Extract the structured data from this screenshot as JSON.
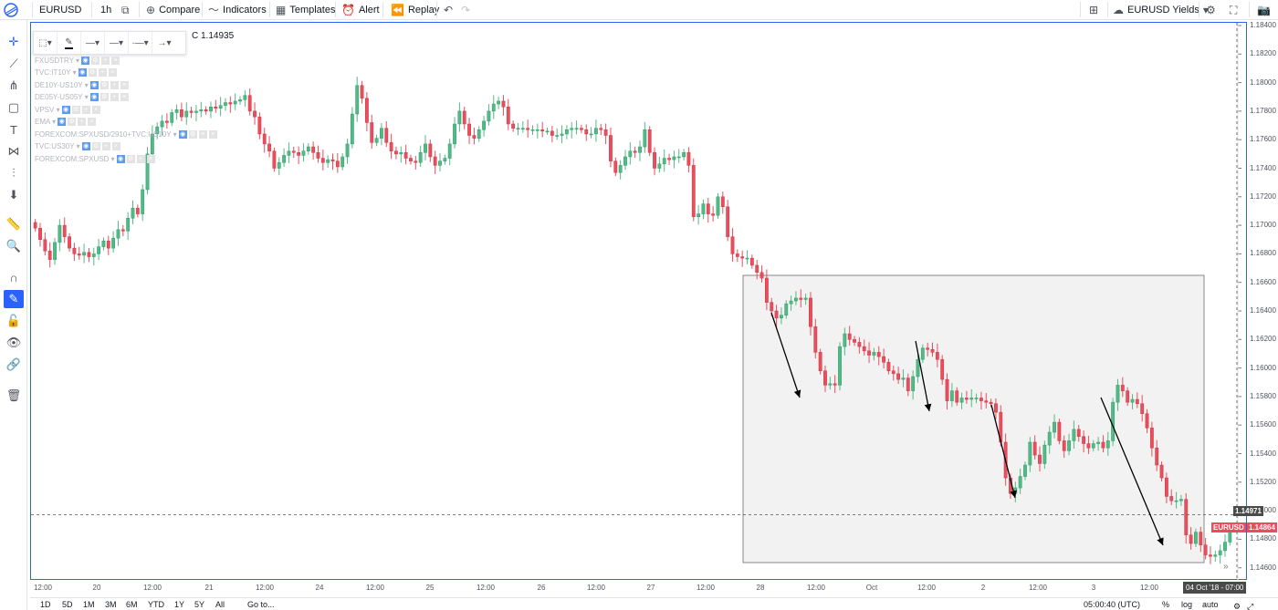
{
  "toolbar": {
    "symbol": "EURUSD",
    "interval": "1h",
    "compare": "Compare",
    "indicators": "Indicators",
    "templates": "Templates",
    "alert": "Alert",
    "replay": "Replay",
    "layout_name": "EURUSD Yields"
  },
  "legend": {
    "close_label": "C 1.14935",
    "studies": [
      "FXUSDTRY",
      "TVC:IT10Y",
      "DE10Y-US10Y",
      "DE05Y-US05Y",
      "VPSV",
      "EMA",
      "FOREXCOM:SPXUSD/2910+TVC:US10Y",
      "TVC:US30Y",
      "FOREXCOM:SPXUSD"
    ]
  },
  "price_axis": {
    "ticks": [
      "1.18400",
      "1.18200",
      "1.18000",
      "1.17800",
      "1.17600",
      "1.17400",
      "1.17200",
      "1.17000",
      "1.16800",
      "1.16600",
      "1.16400",
      "1.16200",
      "1.16000",
      "1.15800",
      "1.15600",
      "1.15400",
      "1.15200",
      "1.15000",
      "1.14800",
      "1.14600"
    ],
    "crosshair_price": "1.14971",
    "last_price": "1.14864",
    "symbol_tag": "EURUSD"
  },
  "time_axis": {
    "ticks": [
      "12:00",
      "20",
      "12:00",
      "21",
      "12:00",
      "24",
      "12:00",
      "25",
      "12:00",
      "26",
      "12:00",
      "27",
      "12:00",
      "28",
      "12:00",
      "Oct",
      "12:00",
      "2",
      "12:00",
      "3",
      "12:00"
    ],
    "crosshair_time": "04 Oct '18 - 07:00"
  },
  "bottom": {
    "ranges": [
      "1D",
      "5D",
      "1M",
      "3M",
      "6M",
      "YTD",
      "1Y",
      "5Y",
      "All"
    ],
    "goto": "Go to...",
    "clock": "05:00:40 (UTC)",
    "percent": "%",
    "log": "log",
    "auto": "auto"
  },
  "colors": {
    "up": "#53b987",
    "down": "#eb4d5c",
    "accent": "#2962ff",
    "box_fill": "#f2f2f2"
  },
  "chart_data": {
    "type": "candlestick",
    "interval": "1h",
    "ylim": [
      1.1455,
      1.1845
    ],
    "closes": [
      1.1698,
      1.169,
      1.1682,
      1.1676,
      1.1688,
      1.17,
      1.1692,
      1.1684,
      1.168,
      1.1679,
      1.1681,
      1.1678,
      1.168,
      1.1685,
      1.1689,
      1.1684,
      1.1691,
      1.1697,
      1.1696,
      1.1705,
      1.1712,
      1.1708,
      1.1725,
      1.175,
      1.1764,
      1.1769,
      1.1773,
      1.1772,
      1.1779,
      1.1781,
      1.1776,
      1.178,
      1.1779,
      1.178,
      1.1781,
      1.178,
      1.1783,
      1.1782,
      1.1784,
      1.1786,
      1.1785,
      1.1787,
      1.1788,
      1.1791,
      1.178,
      1.1776,
      1.1764,
      1.1757,
      1.1752,
      1.174,
      1.1744,
      1.1749,
      1.1752,
      1.1751,
      1.1749,
      1.1752,
      1.1755,
      1.1751,
      1.1747,
      1.1744,
      1.1746,
      1.1745,
      1.1741,
      1.1748,
      1.1757,
      1.1778,
      1.1798,
      1.1789,
      1.1772,
      1.1758,
      1.1761,
      1.1768,
      1.1758,
      1.1752,
      1.175,
      1.1751,
      1.1747,
      1.1745,
      1.1744,
      1.1751,
      1.1757,
      1.1748,
      1.1742,
      1.1745,
      1.1747,
      1.1757,
      1.1771,
      1.178,
      1.1771,
      1.1763,
      1.1761,
      1.1767,
      1.1773,
      1.178,
      1.1785,
      1.1787,
      1.1783,
      1.1771,
      1.1768,
      1.1768,
      1.1768,
      1.1767,
      1.1767,
      1.1767,
      1.1766,
      1.1766,
      1.1763,
      1.1763,
      1.1764,
      1.1767,
      1.1768,
      1.1768,
      1.1767,
      1.1764,
      1.1764,
      1.1768,
      1.1767,
      1.1763,
      1.1745,
      1.1737,
      1.1742,
      1.1748,
      1.1752,
      1.1751,
      1.1755,
      1.1767,
      1.1751,
      1.174,
      1.1743,
      1.1747,
      1.1746,
      1.1748,
      1.1748,
      1.1751,
      1.1742,
      1.1706,
      1.1708,
      1.1715,
      1.1708,
      1.1707,
      1.172,
      1.1713,
      1.1692,
      1.168,
      1.1678,
      1.1677,
      1.1677,
      1.1672,
      1.1667,
      1.1663,
      1.1646,
      1.164,
      1.1635,
      1.1637,
      1.1645,
      1.1647,
      1.1649,
      1.1648,
      1.1649,
      1.1629,
      1.1611,
      1.1598,
      1.1588,
      1.1589,
      1.1588,
      1.1615,
      1.1624,
      1.162,
      1.1618,
      1.1615,
      1.1612,
      1.1609,
      1.1611,
      1.1608,
      1.1604,
      1.1598,
      1.1596,
      1.1592,
      1.1593,
      1.1584,
      1.1594,
      1.1606,
      1.1614,
      1.1613,
      1.1611,
      1.1606,
      1.1592,
      1.1577,
      1.1584,
      1.1576,
      1.1579,
      1.1578,
      1.1579,
      1.1579,
      1.1577,
      1.1576,
      1.1575,
      1.1569,
      1.1548,
      1.1523,
      1.1512,
      1.1516,
      1.1524,
      1.1532,
      1.1548,
      1.1539,
      1.1533,
      1.1546,
      1.1555,
      1.1562,
      1.1549,
      1.1542,
      1.1549,
      1.1557,
      1.1552,
      1.1547,
      1.1544,
      1.1547,
      1.1548,
      1.1544,
      1.1549,
      1.1576,
      1.1588,
      1.1584,
      1.1576,
      1.1578,
      1.1575,
      1.1568,
      1.1558,
      1.1544,
      1.1532,
      1.1523,
      1.151,
      1.1507,
      1.1507,
      1.1508,
      1.1483,
      1.1477,
      1.1485,
      1.1476,
      1.1469,
      1.1468,
      1.1469,
      1.1472,
      1.1478,
      1.1486
    ]
  },
  "box": {
    "annotation": "rectangle"
  }
}
